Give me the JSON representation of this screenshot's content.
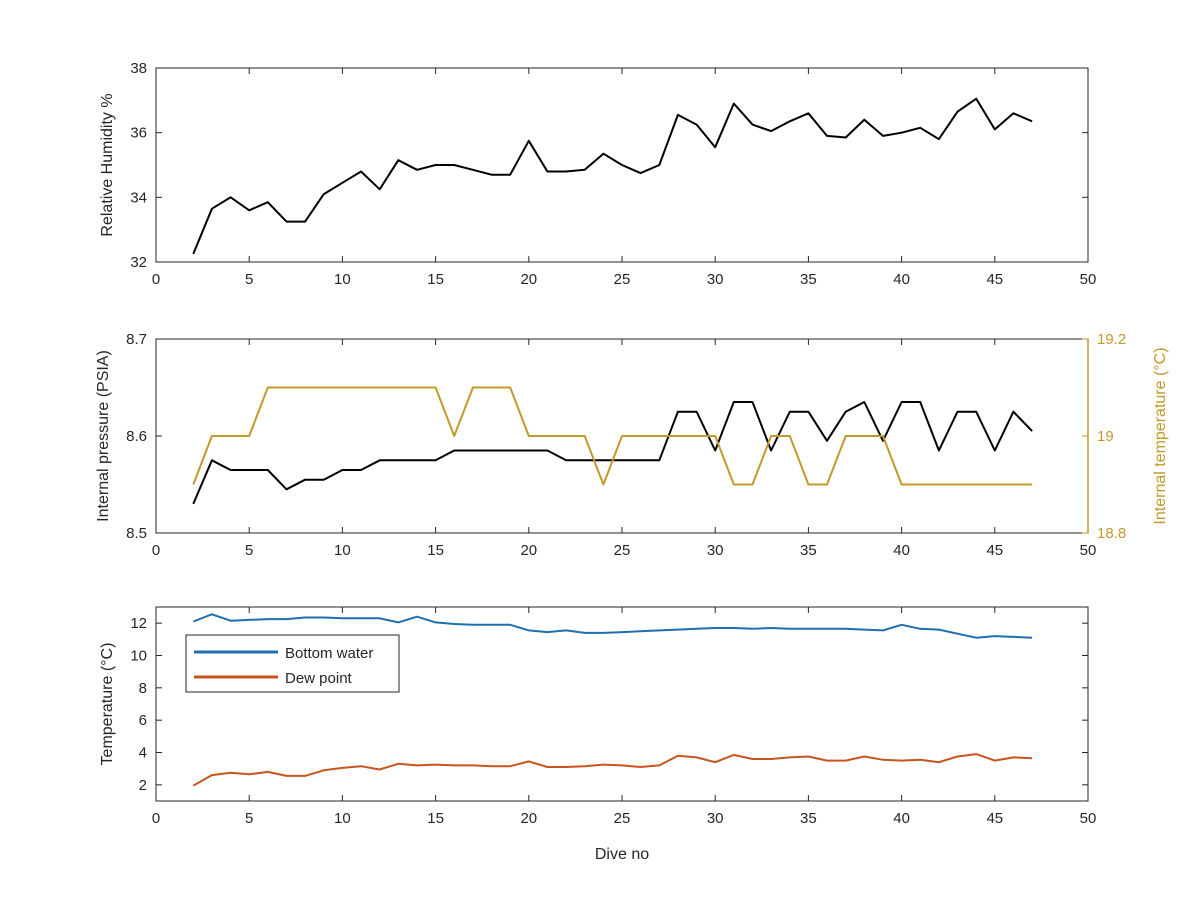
{
  "colors": {
    "axis": "#262626",
    "black_series": "#000000",
    "gold_series": "#C19A2B",
    "blue_series": "#1F6FB0",
    "orange_series": "#C8541E"
  },
  "chart_data": [
    {
      "type": "line",
      "title": "",
      "xlabel": "",
      "ylabel": "Relative Humidity %",
      "xlim": [
        0,
        50
      ],
      "ylim": [
        32,
        38
      ],
      "xticks": [
        0,
        5,
        10,
        15,
        20,
        25,
        30,
        35,
        40,
        45,
        50
      ],
      "yticks": [
        32,
        34,
        36,
        38
      ],
      "grid": false,
      "series": [
        {
          "color": "black_series",
          "x": [
            2,
            3,
            4,
            5,
            6,
            7,
            8,
            9,
            10,
            11,
            12,
            13,
            14,
            15,
            16,
            17,
            18,
            19,
            20,
            21,
            22,
            23,
            24,
            25,
            26,
            27,
            28,
            29,
            30,
            31,
            32,
            33,
            34,
            35,
            36,
            37,
            38,
            39,
            40,
            41,
            42,
            43,
            44,
            45,
            46,
            47
          ],
          "y": [
            32.25,
            33.65,
            34.0,
            33.6,
            33.85,
            33.25,
            33.25,
            34.1,
            34.45,
            34.8,
            34.25,
            35.15,
            34.85,
            35.0,
            35.0,
            34.85,
            34.7,
            34.7,
            35.75,
            34.8,
            34.8,
            34.85,
            35.35,
            35.0,
            34.75,
            35.0,
            36.55,
            36.25,
            35.55,
            36.9,
            36.25,
            36.05,
            36.35,
            36.6,
            35.9,
            35.85,
            36.4,
            35.9,
            36.0,
            36.15,
            35.8,
            36.65,
            37.05,
            36.1,
            36.6,
            36.35
          ]
        }
      ]
    },
    {
      "type": "line",
      "title": "",
      "xlabel": "",
      "ylabel": "Internal pressure (PSIA)",
      "y2label": "Internal temperature (°C)",
      "xlim": [
        0,
        50
      ],
      "ylim": [
        8.5,
        8.7
      ],
      "y2lim": [
        18.8,
        19.2
      ],
      "xticks": [
        0,
        5,
        10,
        15,
        20,
        25,
        30,
        35,
        40,
        45,
        50
      ],
      "yticks": [
        8.5,
        8.6,
        8.7
      ],
      "ytick_labels": [
        "8.5",
        "8.6",
        "8.7"
      ],
      "y2ticks": [
        18.8,
        19.0,
        19.2
      ],
      "y2tick_labels": [
        "18.8",
        "19",
        "19.2"
      ],
      "grid": false,
      "series": [
        {
          "axis": "left",
          "color": "black_series",
          "x": [
            2,
            3,
            4,
            5,
            6,
            7,
            8,
            9,
            10,
            11,
            12,
            13,
            14,
            15,
            16,
            17,
            18,
            19,
            20,
            21,
            22,
            23,
            24,
            25,
            26,
            27,
            28,
            29,
            30,
            31,
            32,
            33,
            34,
            35,
            36,
            37,
            38,
            39,
            40,
            41,
            42,
            43,
            44,
            45,
            46,
            47
          ],
          "y": [
            8.53,
            8.575,
            8.565,
            8.565,
            8.565,
            8.545,
            8.555,
            8.555,
            8.565,
            8.565,
            8.575,
            8.575,
            8.575,
            8.575,
            8.585,
            8.585,
            8.585,
            8.585,
            8.585,
            8.585,
            8.575,
            8.575,
            8.575,
            8.575,
            8.575,
            8.575,
            8.625,
            8.625,
            8.585,
            8.635,
            8.635,
            8.585,
            8.625,
            8.625,
            8.595,
            8.625,
            8.635,
            8.595,
            8.635,
            8.635,
            8.585,
            8.625,
            8.625,
            8.585,
            8.625,
            8.605
          ]
        },
        {
          "axis": "right",
          "color": "gold_series",
          "x": [
            2,
            3,
            4,
            5,
            6,
            7,
            8,
            9,
            10,
            11,
            12,
            13,
            14,
            15,
            16,
            17,
            18,
            19,
            20,
            21,
            22,
            23,
            24,
            25,
            26,
            27,
            28,
            29,
            30,
            31,
            32,
            33,
            34,
            35,
            36,
            37,
            38,
            39,
            40,
            41,
            42,
            43,
            44,
            45,
            46,
            47
          ],
          "y": [
            18.9,
            19.0,
            19.0,
            19.0,
            19.1,
            19.1,
            19.1,
            19.1,
            19.1,
            19.1,
            19.1,
            19.1,
            19.1,
            19.1,
            19.0,
            19.1,
            19.1,
            19.1,
            19.0,
            19.0,
            19.0,
            19.0,
            18.9,
            19.0,
            19.0,
            19.0,
            19.0,
            19.0,
            19.0,
            18.9,
            18.9,
            19.0,
            19.0,
            18.9,
            18.9,
            19.0,
            19.0,
            19.0,
            18.9,
            18.9,
            18.9,
            18.9,
            18.9,
            18.9,
            18.9,
            18.9
          ]
        }
      ]
    },
    {
      "type": "line",
      "title": "",
      "xlabel": "Dive no",
      "ylabel": "Temperature (°C)",
      "xlim": [
        0,
        50
      ],
      "ylim": [
        1,
        13
      ],
      "xticks": [
        0,
        5,
        10,
        15,
        20,
        25,
        30,
        35,
        40,
        45,
        50
      ],
      "yticks": [
        2,
        4,
        6,
        8,
        10,
        12
      ],
      "grid": false,
      "legend": "top-left",
      "series": [
        {
          "name": "Bottom water",
          "color": "blue_series",
          "x": [
            2,
            3,
            4,
            5,
            6,
            7,
            8,
            9,
            10,
            11,
            12,
            13,
            14,
            15,
            16,
            17,
            18,
            19,
            20,
            21,
            22,
            23,
            24,
            25,
            26,
            27,
            28,
            29,
            30,
            31,
            32,
            33,
            34,
            35,
            36,
            37,
            38,
            39,
            40,
            41,
            42,
            43,
            44,
            45,
            46,
            47
          ],
          "y": [
            12.1,
            12.55,
            12.15,
            12.2,
            12.25,
            12.25,
            12.35,
            12.35,
            12.3,
            12.3,
            12.3,
            12.05,
            12.4,
            12.05,
            11.95,
            11.9,
            11.9,
            11.9,
            11.55,
            11.45,
            11.55,
            11.4,
            11.4,
            11.45,
            11.5,
            11.55,
            11.6,
            11.65,
            11.7,
            11.7,
            11.65,
            11.7,
            11.65,
            11.65,
            11.65,
            11.65,
            11.6,
            11.55,
            11.9,
            11.65,
            11.6,
            11.35,
            11.1,
            11.2,
            11.15,
            11.1
          ]
        },
        {
          "name": "Dew point",
          "color": "orange_series",
          "x": [
            2,
            3,
            4,
            5,
            6,
            7,
            8,
            9,
            10,
            11,
            12,
            13,
            14,
            15,
            16,
            17,
            18,
            19,
            20,
            21,
            22,
            23,
            24,
            25,
            26,
            27,
            28,
            29,
            30,
            31,
            32,
            33,
            34,
            35,
            36,
            37,
            38,
            39,
            40,
            41,
            42,
            43,
            44,
            45,
            46,
            47
          ],
          "y": [
            1.95,
            2.6,
            2.75,
            2.65,
            2.8,
            2.55,
            2.55,
            2.9,
            3.05,
            3.15,
            2.95,
            3.3,
            3.2,
            3.25,
            3.2,
            3.2,
            3.15,
            3.15,
            3.45,
            3.1,
            3.1,
            3.15,
            3.25,
            3.2,
            3.1,
            3.2,
            3.8,
            3.7,
            3.4,
            3.85,
            3.6,
            3.6,
            3.7,
            3.75,
            3.5,
            3.5,
            3.75,
            3.55,
            3.5,
            3.55,
            3.4,
            3.75,
            3.9,
            3.5,
            3.7,
            3.65
          ]
        }
      ]
    }
  ]
}
